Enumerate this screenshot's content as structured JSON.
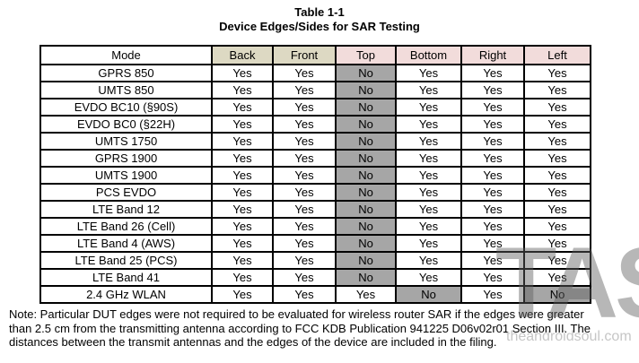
{
  "title": {
    "line1": "Table 1-1",
    "line2": "Device Edges/Sides for SAR Testing"
  },
  "table": {
    "columns": [
      "Mode",
      "Back",
      "Front",
      "Top",
      "Bottom",
      "Right",
      "Left"
    ],
    "header_bg": [
      "#ffffff",
      "#ddd9c3",
      "#ddd9c3",
      "#f2dcdb",
      "#f2dcdb",
      "#f2dcdb",
      "#f2dcdb"
    ],
    "no_cell_bg": "#a6a6a6",
    "yes_cell_bg": "#ffffff",
    "rows": [
      {
        "mode": "GPRS 850",
        "values": [
          "Yes",
          "Yes",
          "No",
          "Yes",
          "Yes",
          "Yes"
        ]
      },
      {
        "mode": "UMTS 850",
        "values": [
          "Yes",
          "Yes",
          "No",
          "Yes",
          "Yes",
          "Yes"
        ]
      },
      {
        "mode": "EVDO BC10 (§90S)",
        "values": [
          "Yes",
          "Yes",
          "No",
          "Yes",
          "Yes",
          "Yes"
        ]
      },
      {
        "mode": "EVDO BC0 (§22H)",
        "values": [
          "Yes",
          "Yes",
          "No",
          "Yes",
          "Yes",
          "Yes"
        ]
      },
      {
        "mode": "UMTS 1750",
        "values": [
          "Yes",
          "Yes",
          "No",
          "Yes",
          "Yes",
          "Yes"
        ]
      },
      {
        "mode": "GPRS 1900",
        "values": [
          "Yes",
          "Yes",
          "No",
          "Yes",
          "Yes",
          "Yes"
        ]
      },
      {
        "mode": "UMTS 1900",
        "values": [
          "Yes",
          "Yes",
          "No",
          "Yes",
          "Yes",
          "Yes"
        ]
      },
      {
        "mode": "PCS EVDO",
        "values": [
          "Yes",
          "Yes",
          "No",
          "Yes",
          "Yes",
          "Yes"
        ]
      },
      {
        "mode": "LTE Band 12",
        "values": [
          "Yes",
          "Yes",
          "No",
          "Yes",
          "Yes",
          "Yes"
        ]
      },
      {
        "mode": "LTE Band 26 (Cell)",
        "values": [
          "Yes",
          "Yes",
          "No",
          "Yes",
          "Yes",
          "Yes"
        ]
      },
      {
        "mode": "LTE Band 4 (AWS)",
        "values": [
          "Yes",
          "Yes",
          "No",
          "Yes",
          "Yes",
          "Yes"
        ]
      },
      {
        "mode": "LTE Band 25 (PCS)",
        "values": [
          "Yes",
          "Yes",
          "No",
          "Yes",
          "Yes",
          "Yes"
        ]
      },
      {
        "mode": "LTE Band 41",
        "values": [
          "Yes",
          "Yes",
          "No",
          "Yes",
          "Yes",
          "Yes"
        ]
      },
      {
        "mode": "2.4 GHz WLAN",
        "values": [
          "Yes",
          "Yes",
          "Yes",
          "No",
          "Yes",
          "No"
        ]
      }
    ]
  },
  "note": {
    "lines": [
      "Note: Particular DUT edges were not required to be evaluated for wireless router SAR if the edges were greater",
      "than 2.5 cm from the transmitting antenna according to FCC KDB Publication 941225 D06v02r01 Section III. The",
      "distances between the transmit antennas and the edges of the device are included in the filing."
    ]
  },
  "watermark": {
    "tas": "TAS",
    "site": "theandroidsoul.com"
  }
}
